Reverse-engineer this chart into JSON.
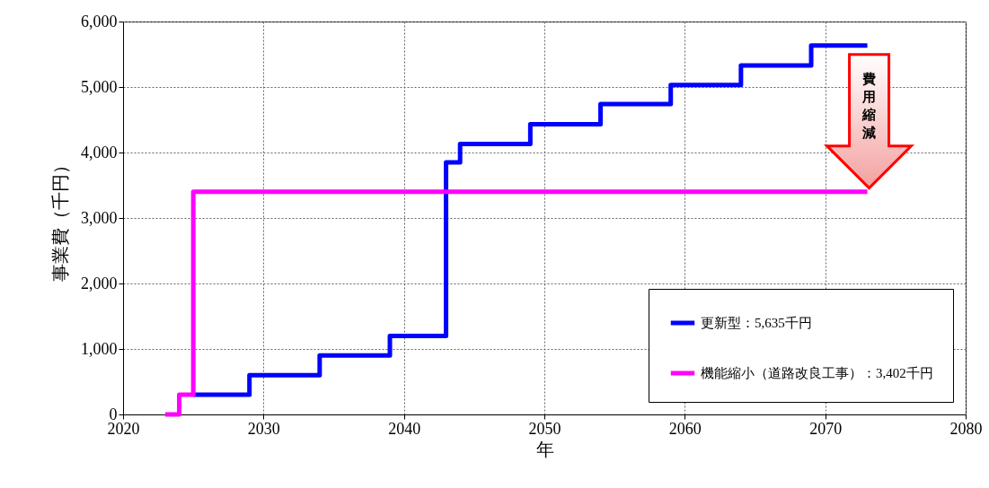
{
  "chart_data": {
    "type": "step",
    "xlabel": "年",
    "ylabel": "事業費（千円）",
    "xlim": [
      2020,
      2080
    ],
    "xticks": [
      2020,
      2030,
      2040,
      2050,
      2060,
      2070,
      2080
    ],
    "ylim": [
      0,
      6000
    ],
    "yticks": [
      0,
      {
        "value": 1000,
        "label": "1,000"
      },
      {
        "value": 2000,
        "label": "2,000"
      },
      {
        "value": 3000,
        "label": "3,000"
      },
      {
        "value": 4000,
        "label": "4,000"
      },
      {
        "value": 5000,
        "label": "5,000"
      },
      {
        "value": 6000,
        "label": "6,000"
      }
    ],
    "grid": true,
    "legend": "bottom right",
    "annotations": [
      "費用縮減"
    ],
    "series": [
      {
        "name": "更新型：5,635千円",
        "color": "#0000ff",
        "x": [
          2025,
          2029,
          2034,
          2039,
          2043,
          2044,
          2049,
          2054,
          2059,
          2064,
          2069,
          2073
        ],
        "values": [
          300,
          600,
          900,
          1200,
          3850,
          4130,
          4430,
          4740,
          5030,
          5330,
          5635,
          5635
        ]
      },
      {
        "name": "機能縮小（道路改良工事）：3,402千円",
        "color": "#ff00ff",
        "x": [
          2023,
          2024,
          2025,
          2073
        ],
        "values": [
          0,
          300,
          3402,
          3402
        ]
      }
    ]
  }
}
